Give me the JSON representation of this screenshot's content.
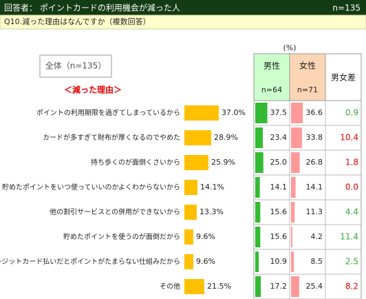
{
  "header": {
    "title": "回答者： ポイントカードの利用機会が減った人",
    "n": "n=135"
  },
  "question": "Q10.減った理由はなんですか（複数回答）",
  "overall_label": "全体（n=135）",
  "section_label": "＜減った理由＞",
  "unit": "(%)",
  "chart_data": {
    "type": "bar",
    "categories": [
      "ポイントの利用期限を過ぎてしまっているから",
      "カードが多すぎて財布が厚くなるのでやめた",
      "持ち歩くのが面倒くさいから",
      "貯めたポイントをいつ使っていいのかよくわからないから",
      "他の割引サービスとの併用ができないから",
      "貯めたポイントを使うのが面倒だから",
      "クレジットカード払いだとポイントがたまらない仕組みだから",
      "その他"
    ],
    "values": [
      37.0,
      28.9,
      25.9,
      14.1,
      13.3,
      9.6,
      9.6,
      21.5
    ],
    "value_labels": [
      "37.0%",
      "28.9%",
      "25.9%",
      "14.1%",
      "13.3%",
      "9.6%",
      "9.6%",
      "21.5%"
    ],
    "color": "#ffc000"
  },
  "table": {
    "columns": [
      {
        "name": "男性",
        "n": "n=64",
        "header_color": "#ccffcc",
        "color": "#33bb33",
        "values": [
          37.5,
          23.4,
          25.0,
          14.1,
          15.6,
          15.6,
          10.9,
          17.2
        ],
        "value_labels": [
          "37.5",
          "23.4",
          "25.0",
          "14.1",
          "15.6",
          "15.6",
          "10.9",
          "17.2"
        ]
      },
      {
        "name": "女性",
        "n": "n=71",
        "header_color": "#fcd5b4",
        "color": "#ff9999",
        "values": [
          36.6,
          33.8,
          26.8,
          14.1,
          11.3,
          4.2,
          8.5,
          25.4
        ],
        "value_labels": [
          "36.6",
          "33.8",
          "26.8",
          "14.1",
          "11.3",
          "4.2",
          "8.5",
          "25.4"
        ]
      }
    ],
    "diff": {
      "name": "男女差",
      "values": [
        0.9,
        10.4,
        1.8,
        0.0,
        4.4,
        11.4,
        2.5,
        8.2
      ],
      "value_labels": [
        "0.9",
        "10.4",
        "1.8",
        "0.0",
        "4.4",
        "11.4",
        "2.5",
        "8.2"
      ],
      "colors": [
        "#33aa33",
        "#ee0000",
        "#ee0000",
        "#ee0000",
        "#33aa33",
        "#33aa33",
        "#33aa33",
        "#ee0000"
      ]
    }
  }
}
